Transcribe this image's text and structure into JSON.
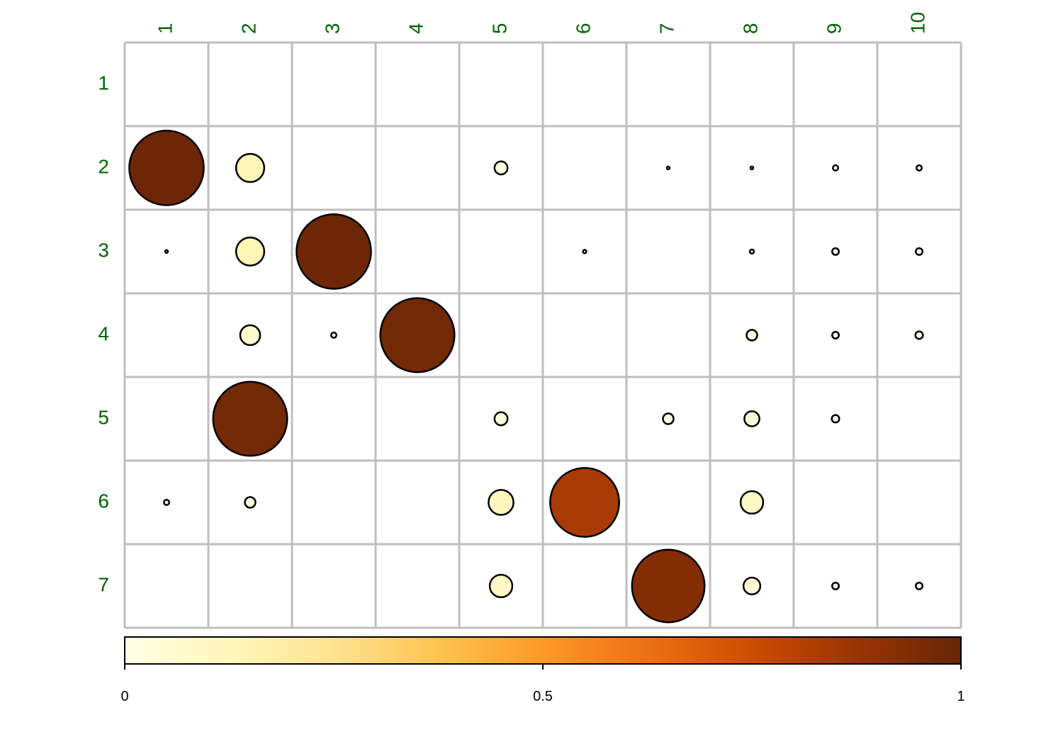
{
  "chart_data": {
    "type": "heatmap",
    "encoding": "circle size and fill color proportional to value",
    "title": "",
    "xlabel": "",
    "ylabel": "",
    "columns": [
      "1",
      "2",
      "3",
      "4",
      "5",
      "6",
      "7",
      "8",
      "9",
      "10"
    ],
    "rows": [
      "1",
      "2",
      "3",
      "4",
      "5",
      "6",
      "7"
    ],
    "values": [
      [
        null,
        null,
        null,
        null,
        null,
        null,
        null,
        null,
        null,
        null
      ],
      [
        0.98,
        0.14,
        null,
        null,
        0.03,
        null,
        0.001,
        0.001,
        0.005,
        0.005
      ],
      [
        0.001,
        0.14,
        0.98,
        null,
        null,
        0.002,
        null,
        0.003,
        0.008,
        0.008
      ],
      [
        null,
        0.07,
        0.005,
        0.97,
        null,
        null,
        null,
        0.02,
        0.008,
        0.01
      ],
      [
        null,
        0.97,
        null,
        null,
        0.03,
        null,
        0.02,
        0.04,
        0.01,
        null
      ],
      [
        0.005,
        0.02,
        null,
        null,
        0.11,
        0.84,
        null,
        0.09,
        null,
        null
      ],
      [
        null,
        null,
        null,
        null,
        0.09,
        null,
        0.93,
        0.05,
        0.008,
        0.008
      ]
    ],
    "colorbar": {
      "range": [
        0,
        1
      ],
      "ticks": [
        {
          "value": 0,
          "label": "0"
        },
        {
          "value": 0.5,
          "label": "0.5"
        },
        {
          "value": 1,
          "label": "1"
        }
      ]
    },
    "colors": {
      "label_text": "#006400",
      "grid": "#bebebe",
      "scale": [
        "#ffffe5",
        "#fff7bc",
        "#fee391",
        "#fec44f",
        "#fe9929",
        "#ec7014",
        "#cc4c02",
        "#993404",
        "#662506"
      ]
    }
  }
}
